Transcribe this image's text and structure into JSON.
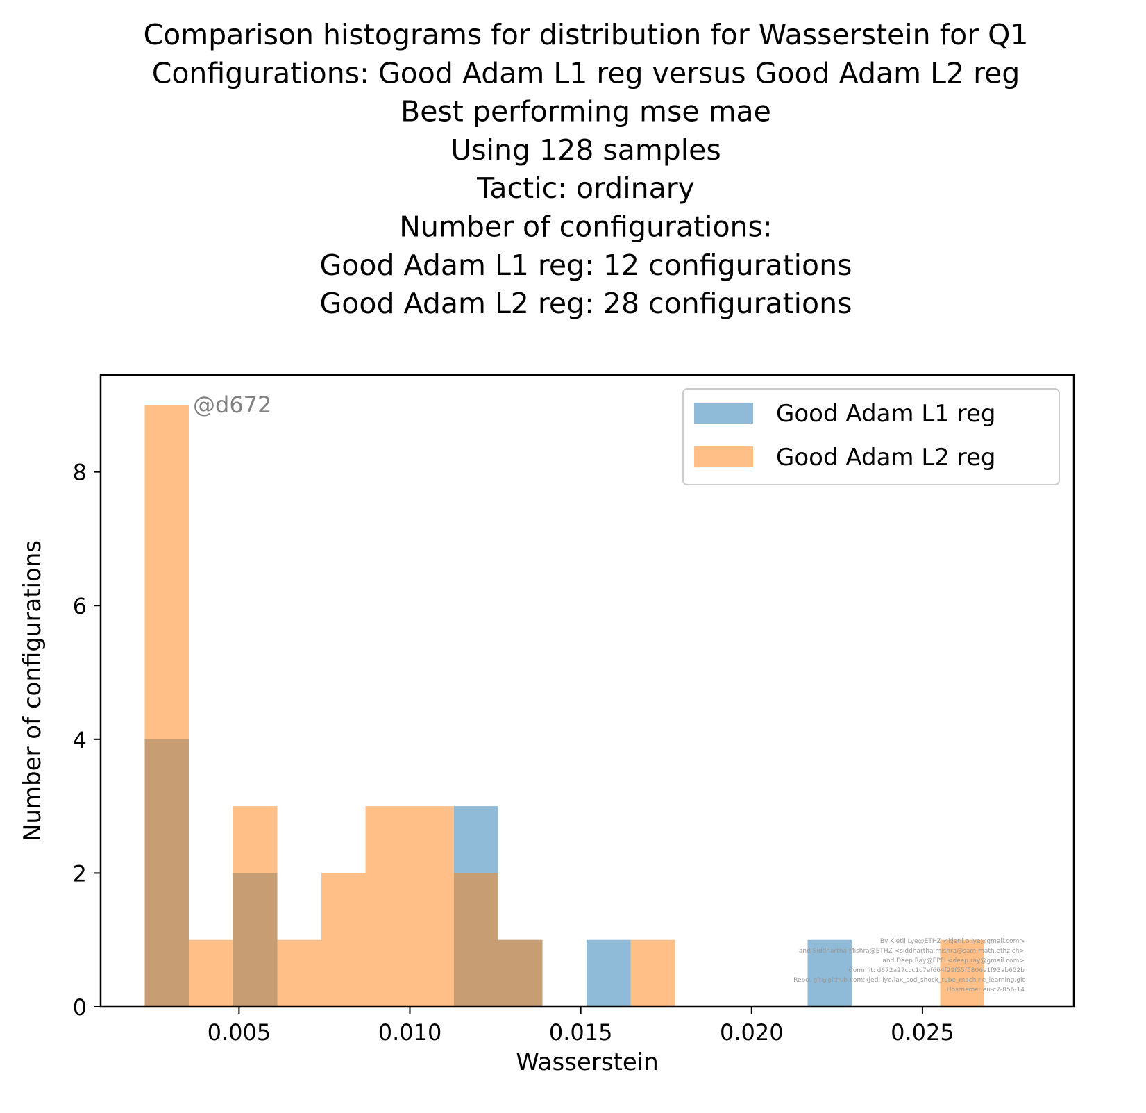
{
  "chart_data": {
    "type": "bar",
    "title_lines": [
      "Comparison histograms for distribution for Wasserstein for Q1",
      "Configurations: Good Adam L1 reg versus Good Adam L2 reg",
      "Best performing mse mae",
      "Using 128 samples",
      "Tactic: ordinary",
      "Number of configurations:",
      "Good Adam L1 reg: 12 configurations",
      "Good Adam L2 reg: 28 configurations"
    ],
    "xlabel": "Wasserstein",
    "ylabel": "Number of configurations",
    "xlim": [
      0.00095,
      0.02943
    ],
    "ylim": [
      0,
      9.45
    ],
    "xticks": [
      0.005,
      0.01,
      0.015,
      0.02,
      0.025
    ],
    "xtick_labels": [
      "0.005",
      "0.010",
      "0.015",
      "0.020",
      "0.025"
    ],
    "yticks": [
      0,
      2,
      4,
      6,
      8
    ],
    "ytick_labels": [
      "0",
      "2",
      "4",
      "6",
      "8"
    ],
    "grid": false,
    "legend_position": "top-right",
    "annotation": "@d672",
    "credits": [
      "By Kjetil Lye@ETHZ <kjetil.o.lye@gmail.com>",
      "and Siddhartha Mishra@ETHZ <siddhartha.mishra@sam.math.ethz.ch>",
      "and Deep Ray@EPFL<deep.ray@gmail.com>",
      "Commit: d672a27ccc1c7ef664f29f55f5806e1f93ab652b",
      "Repo: git@github.com:kjetil-lye/lax_sod_shock_tube_machine_learning.git",
      "Hostname: eu-c7-056-14"
    ],
    "series": [
      {
        "name": "Good Adam L1 reg",
        "color": "#1f77b4",
        "opacity": 0.5,
        "bins": [
          {
            "x0": 0.00224,
            "x1": 0.00353,
            "count": 4
          },
          {
            "x0": 0.00482,
            "x1": 0.00612,
            "count": 2
          },
          {
            "x0": 0.01129,
            "x1": 0.01258,
            "count": 3
          },
          {
            "x0": 0.01258,
            "x1": 0.01388,
            "count": 1
          },
          {
            "x0": 0.01517,
            "x1": 0.01646,
            "count": 1
          },
          {
            "x0": 0.02164,
            "x1": 0.02293,
            "count": 1
          }
        ]
      },
      {
        "name": "Good Adam L2 reg",
        "color": "#ff7f0e",
        "opacity": 0.5,
        "bins": [
          {
            "x0": 0.00224,
            "x1": 0.00353,
            "count": 9
          },
          {
            "x0": 0.00353,
            "x1": 0.00482,
            "count": 1
          },
          {
            "x0": 0.00482,
            "x1": 0.00612,
            "count": 3
          },
          {
            "x0": 0.00612,
            "x1": 0.00741,
            "count": 1
          },
          {
            "x0": 0.00741,
            "x1": 0.0087,
            "count": 2
          },
          {
            "x0": 0.0087,
            "x1": 0.01,
            "count": 3
          },
          {
            "x0": 0.01,
            "x1": 0.01129,
            "count": 3
          },
          {
            "x0": 0.01129,
            "x1": 0.01258,
            "count": 2
          },
          {
            "x0": 0.01258,
            "x1": 0.01388,
            "count": 1
          },
          {
            "x0": 0.01646,
            "x1": 0.01776,
            "count": 1
          },
          {
            "x0": 0.02552,
            "x1": 0.02681,
            "count": 1
          }
        ]
      }
    ]
  }
}
